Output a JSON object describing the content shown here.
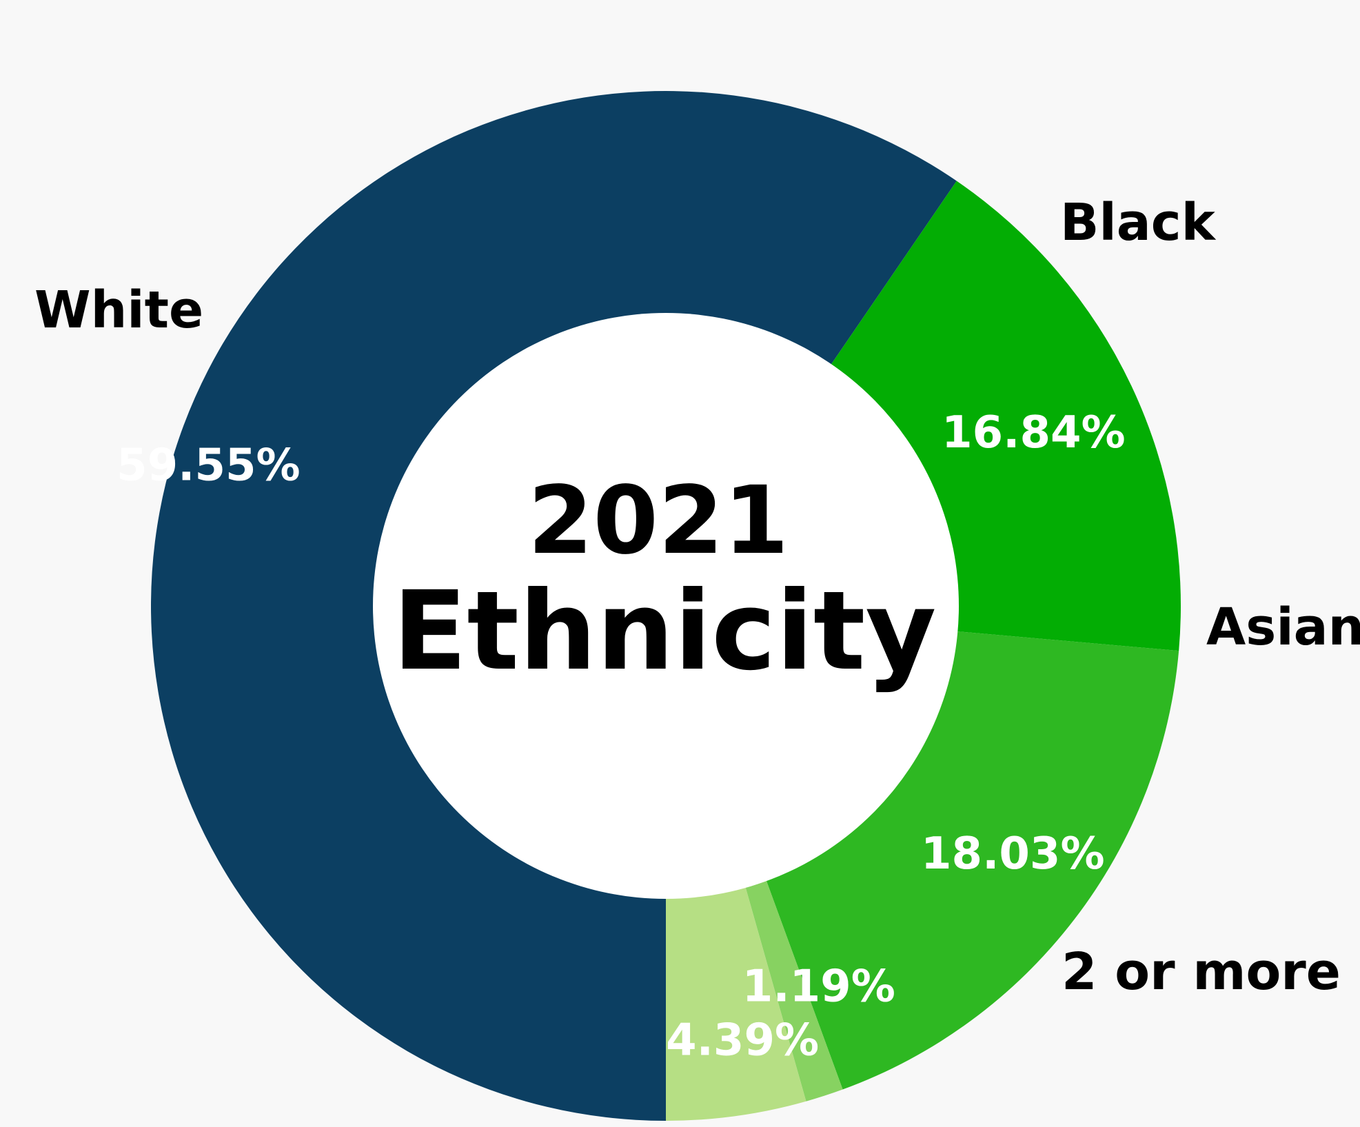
{
  "chart_data": {
    "type": "pie",
    "variant": "donut",
    "title_lines": [
      "2021",
      "Ethnicity"
    ],
    "start_angle_deg": 180,
    "direction": "clockwise",
    "categories": [
      "White",
      "Black",
      "Asian",
      "",
      "2 or more"
    ],
    "values": [
      59.55,
      16.84,
      18.03,
      1.19,
      4.39
    ],
    "value_labels": [
      "59.55%",
      "16.84%",
      "18.03%",
      "1.19%",
      "4.39%"
    ],
    "colors": [
      "#0c3f62",
      "#03ad04",
      "#2eb822",
      "#87d261",
      "#b6df84"
    ],
    "legend": "none"
  }
}
